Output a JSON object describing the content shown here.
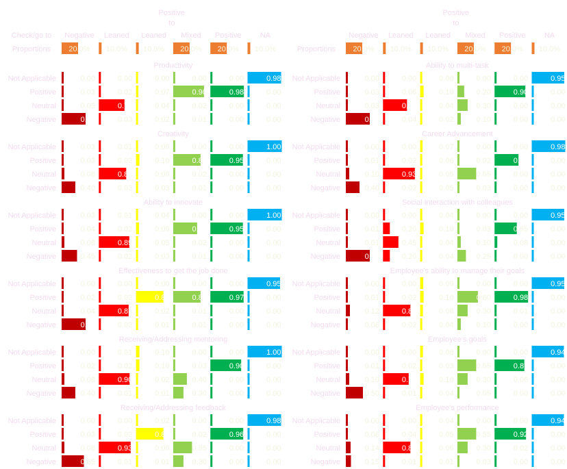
{
  "colors": {
    "Negative": "#c00000",
    "Leaned Negative": "#ff0000",
    "Leaned Neutral": "#ffff00",
    "Mixed": "#92d050",
    "Positive": "#00b050",
    "NA": "#00b0f0",
    "label": "#f3dcef",
    "value_light": "#f3f3e0",
    "value_bold": "#ffffff"
  },
  "header": {
    "headers": [
      "Check/go to",
      "Negative",
      "Leaned",
      "Leaned",
      "Mixed",
      "Positive",
      "NA"
    ],
    "row_label": "Proportions",
    "title_top": "Positive",
    "title_sub": "to",
    "groups": [
      {
        "proportions": [
          0.2,
          0.1,
          0.1,
          0.2,
          0.2,
          0.1
        ]
      },
      {
        "proportions": [
          0.2,
          0.1,
          0.1,
          0.2,
          0.2,
          0.1
        ]
      }
    ]
  },
  "chart_data": {
    "type": "bar",
    "columns": [
      "Negative",
      "Leaned Negative",
      "Leaned Neutral",
      "Mixed",
      "Positive",
      "NA"
    ],
    "rows": [
      "Not Applicable",
      "Positive",
      "Neutral",
      "Negative"
    ],
    "panels": [
      {
        "title": "Productivity",
        "values": [
          [
            0.0,
            0.0,
            0.0,
            0.0,
            0.0,
            0.98
          ],
          [
            0.03,
            0.02,
            0.07,
            0.9,
            0.98,
            0.0
          ],
          [
            0.05,
            0.75,
            0.04,
            0.02,
            0.0,
            0.0
          ],
          [
            0.7,
            0.03,
            0.02,
            0.01,
            0.0,
            0.0
          ]
        ]
      },
      {
        "title": "Ability to multi-task",
        "values": [
          [
            0.0,
            0.0,
            0.0,
            0.0,
            0.0,
            0.95
          ],
          [
            0.03,
            0.06,
            0.1,
            0.2,
            0.9,
            0.0
          ],
          [
            0.03,
            0.7,
            0.04,
            0.3,
            0.0,
            0.0
          ],
          [
            0.7,
            0.04,
            0.02,
            0.1,
            0.0,
            0.0
          ]
        ]
      },
      {
        "title": "Creativity",
        "values": [
          [
            0.03,
            0.01,
            0.05,
            0.0,
            0.0,
            1.0
          ],
          [
            0.03,
            0.02,
            0.1,
            0.8,
            0.95,
            0.0
          ],
          [
            0.08,
            0.8,
            0.05,
            0.02,
            0.0,
            0.0
          ],
          [
            0.4,
            0.03,
            0.03,
            0.01,
            0.0,
            0.0
          ]
        ]
      },
      {
        "title": "Career Advancement",
        "values": [
          [
            0.0,
            0.0,
            0.07,
            0.0,
            0.0,
            0.98
          ],
          [
            0.01,
            0.02,
            0.06,
            0.02,
            0.7,
            0.0
          ],
          [
            0.1,
            0.93,
            0.05,
            0.55,
            0.0,
            0.0
          ],
          [
            0.4,
            0.02,
            0.05,
            0.03,
            0.0,
            0.0
          ]
        ]
      },
      {
        "title": "Ability to innovate",
        "values": [
          [
            0.03,
            0.01,
            0.04,
            0.0,
            0.0,
            1.0
          ],
          [
            0.04,
            0.02,
            0.09,
            0.7,
            0.95,
            0.0
          ],
          [
            0.08,
            0.89,
            0.05,
            0.02,
            0.0,
            0.0
          ],
          [
            0.45,
            0.02,
            0.03,
            0.01,
            0.0,
            0.0
          ]
        ]
      },
      {
        "title": "Social interaction with colleagues",
        "values": [
          [
            0.0,
            0.0,
            0.04,
            0.0,
            0.0,
            0.95
          ],
          [
            0.01,
            0.2,
            0.1,
            0.03,
            0.65,
            0.0
          ],
          [
            0.01,
            0.45,
            0.04,
            0.1,
            0.08,
            0.0
          ],
          [
            0.7,
            0.2,
            0.04,
            0.25,
            0.0,
            0.0
          ]
        ]
      },
      {
        "title": "Effectiveness to get the job done",
        "values": [
          [
            0.0,
            0.0,
            0.0,
            0.0,
            0.0,
            0.95
          ],
          [
            0.02,
            0.02,
            0.8,
            0.8,
            0.97,
            0.0
          ],
          [
            0.04,
            0.87,
            0.02,
            0.01,
            0.0,
            0.0
          ],
          [
            0.7,
            0.02,
            0.01,
            0.01,
            0.0,
            0.0
          ]
        ]
      },
      {
        "title": "Employee's ability to manage their goals",
        "values": [
          [
            0.0,
            0.0,
            0.09,
            0.0,
            0.0,
            0.95
          ],
          [
            0.01,
            0.02,
            0.1,
            0.6,
            0.98,
            0.0
          ],
          [
            0.12,
            0.8,
            0.08,
            0.3,
            0.01,
            0.0
          ],
          [
            0.06,
            0.02,
            0.04,
            0.1,
            0.0,
            0.0
          ]
        ]
      },
      {
        "title": "Receiving/Addressing mentoring",
        "values": [
          [
            0.0,
            0.01,
            0.1,
            0.0,
            0.0,
            1.0
          ],
          [
            0.02,
            0.02,
            0.1,
            0.03,
            0.9,
            0.0
          ],
          [
            0.08,
            0.9,
            0.02,
            0.4,
            0.0,
            0.0
          ],
          [
            0.4,
            0.01,
            0.01,
            0.3,
            0.0,
            0.0
          ]
        ]
      },
      {
        "title": "Employee's goals",
        "values": [
          [
            0.0,
            0.0,
            0.08,
            0.0,
            0.0,
            0.94
          ],
          [
            0.01,
            0.02,
            0.03,
            0.55,
            0.87,
            0.0
          ],
          [
            0.1,
            0.75,
            0.1,
            0.3,
            0.06,
            0.0
          ],
          [
            0.5,
            0.01,
            0.04,
            0.05,
            0.0,
            0.0
          ]
        ]
      },
      {
        "title": "Receiving/Addressing feedback",
        "values": [
          [
            0.0,
            0.0,
            0.02,
            0.0,
            0.0,
            0.98
          ],
          [
            0.03,
            0.02,
            0.8,
            0.02,
            0.96,
            0.0
          ],
          [
            0.08,
            0.93,
            0.05,
            0.55,
            0.0,
            0.0
          ],
          [
            0.65,
            0.01,
            0.01,
            0.3,
            0.0,
            0.0
          ]
        ]
      },
      {
        "title": "Employee's performance",
        "values": [
          [
            0.0,
            0.0,
            0.04,
            0.0,
            0.0,
            0.94
          ],
          [
            0.06,
            0.04,
            0.05,
            0.55,
            0.92,
            0.0
          ],
          [
            0.14,
            0.8,
            0.06,
            0.3,
            0.02,
            0.0
          ],
          [
            0.15,
            0.01,
            0.01,
            0.03,
            0.0,
            0.0
          ]
        ]
      }
    ]
  }
}
